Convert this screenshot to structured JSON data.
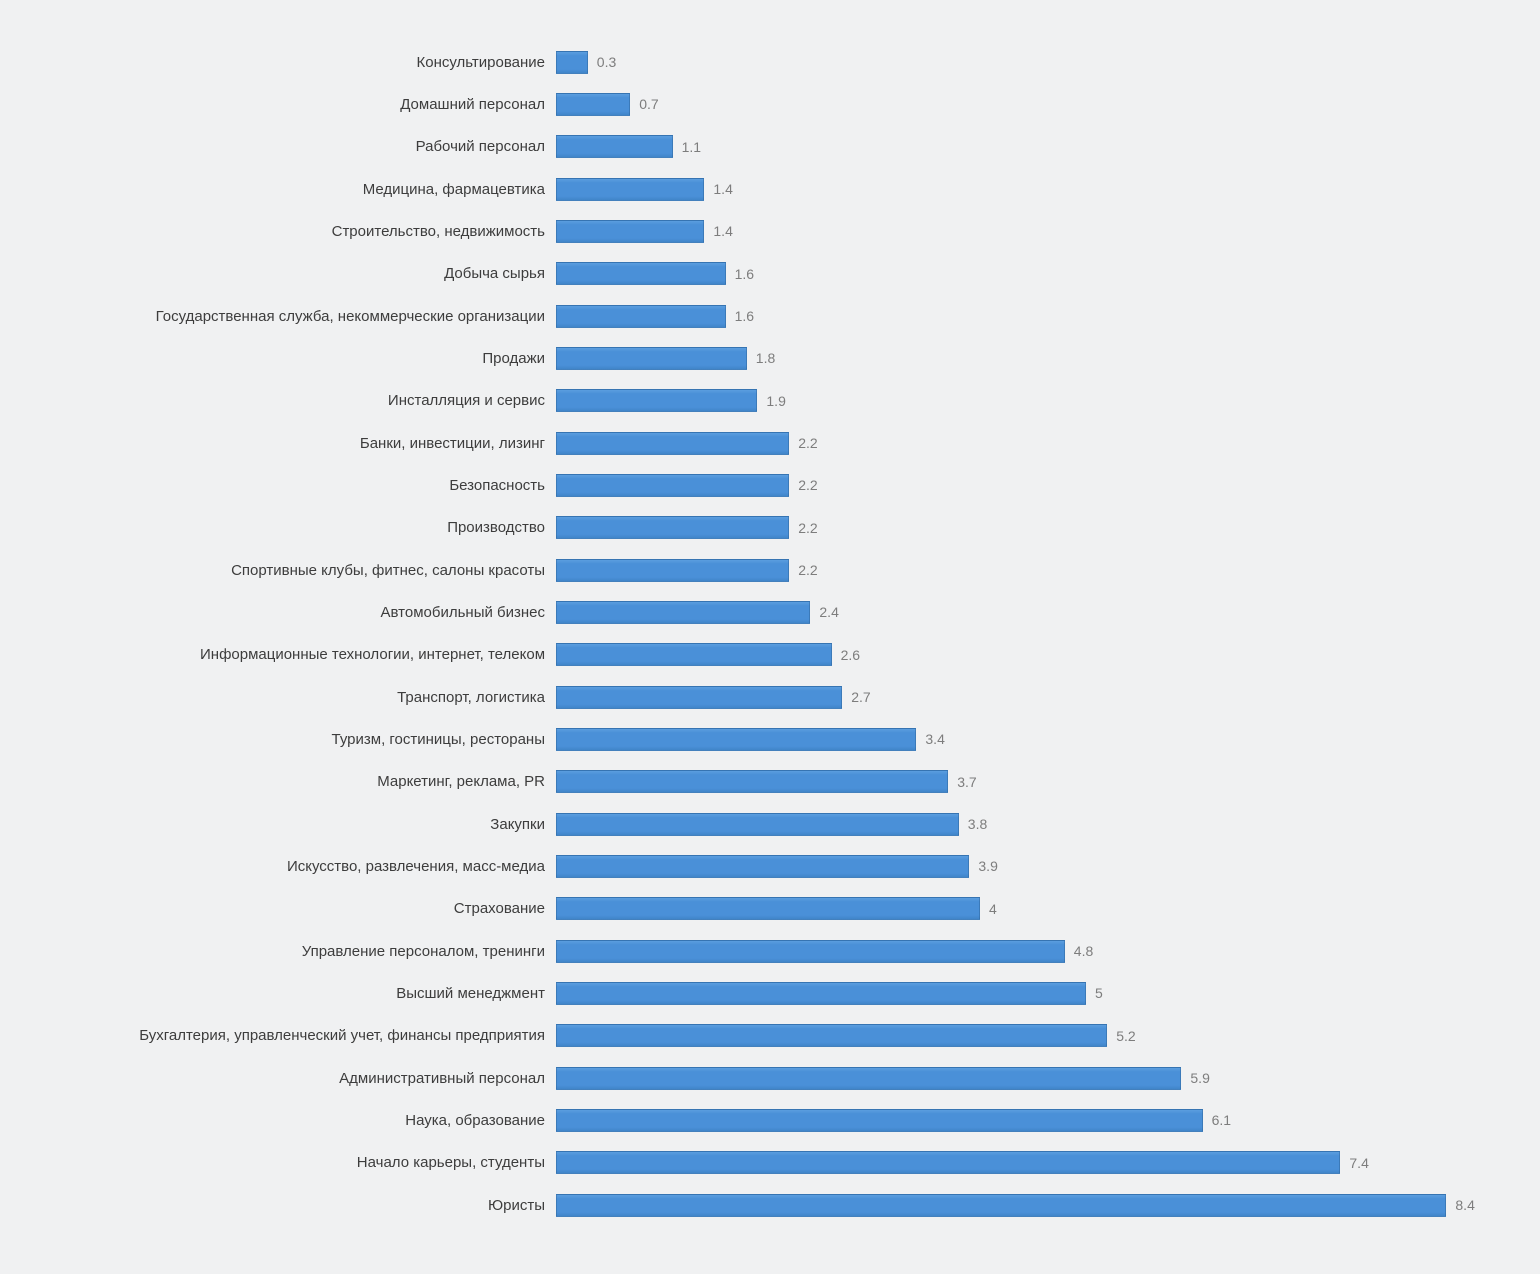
{
  "chart_data": {
    "type": "bar",
    "orientation": "horizontal",
    "title": "",
    "xlabel": "",
    "ylabel": "",
    "xlim": [
      0,
      8.4
    ],
    "grid": false,
    "legend": false,
    "bar_color": "#4a90d8",
    "bar_border_color": "#2a6094",
    "background_color": "#f0f1f2",
    "category_label_color": "#3d3d3d",
    "value_label_color": "#7d7d7d",
    "categories": [
      "Консультирование",
      "Домашний персонал",
      "Рабочий персонал",
      "Медицина, фармацевтика",
      "Строительство, недвижимость",
      "Добыча сырья",
      "Государственная служба, некоммерческие организации",
      "Продажи",
      "Инсталляция и сервис",
      "Банки, инвестиции, лизинг",
      "Безопасность",
      "Производство",
      "Спортивные клубы, фитнес, салоны красоты",
      "Автомобильный бизнес",
      "Информационные технологии, интернет, телеком",
      "Транспорт, логистика",
      "Туризм, гостиницы, рестораны",
      "Маркетинг, реклама, PR",
      "Закупки",
      "Искусство, развлечения, масс-медиа",
      "Страхование",
      "Управление персоналом, тренинги",
      "Высший менеджмент",
      "Бухгалтерия, управленческий учет, финансы предприятия",
      "Административный персонал",
      "Наука, образование",
      "Начало карьеры, студенты",
      "Юристы"
    ],
    "values": [
      0.3,
      0.7,
      1.1,
      1.4,
      1.4,
      1.6,
      1.6,
      1.8,
      1.9,
      2.2,
      2.2,
      2.2,
      2.2,
      2.4,
      2.6,
      2.7,
      3.4,
      3.7,
      3.8,
      3.9,
      4,
      4.8,
      5,
      5.2,
      5.9,
      6.1,
      7.4,
      8.4
    ],
    "value_labels": [
      "0.3",
      "0.7",
      "1.1",
      "1.4",
      "1.4",
      "1.6",
      "1.6",
      "1.8",
      "1.9",
      "2.2",
      "2.2",
      "2.2",
      "2.2",
      "2.4",
      "2.6",
      "2.7",
      "3.4",
      "3.7",
      "3.8",
      "3.9",
      "4",
      "4.8",
      "5",
      "5.2",
      "5.9",
      "6.1",
      "7.4",
      "8.4"
    ]
  }
}
